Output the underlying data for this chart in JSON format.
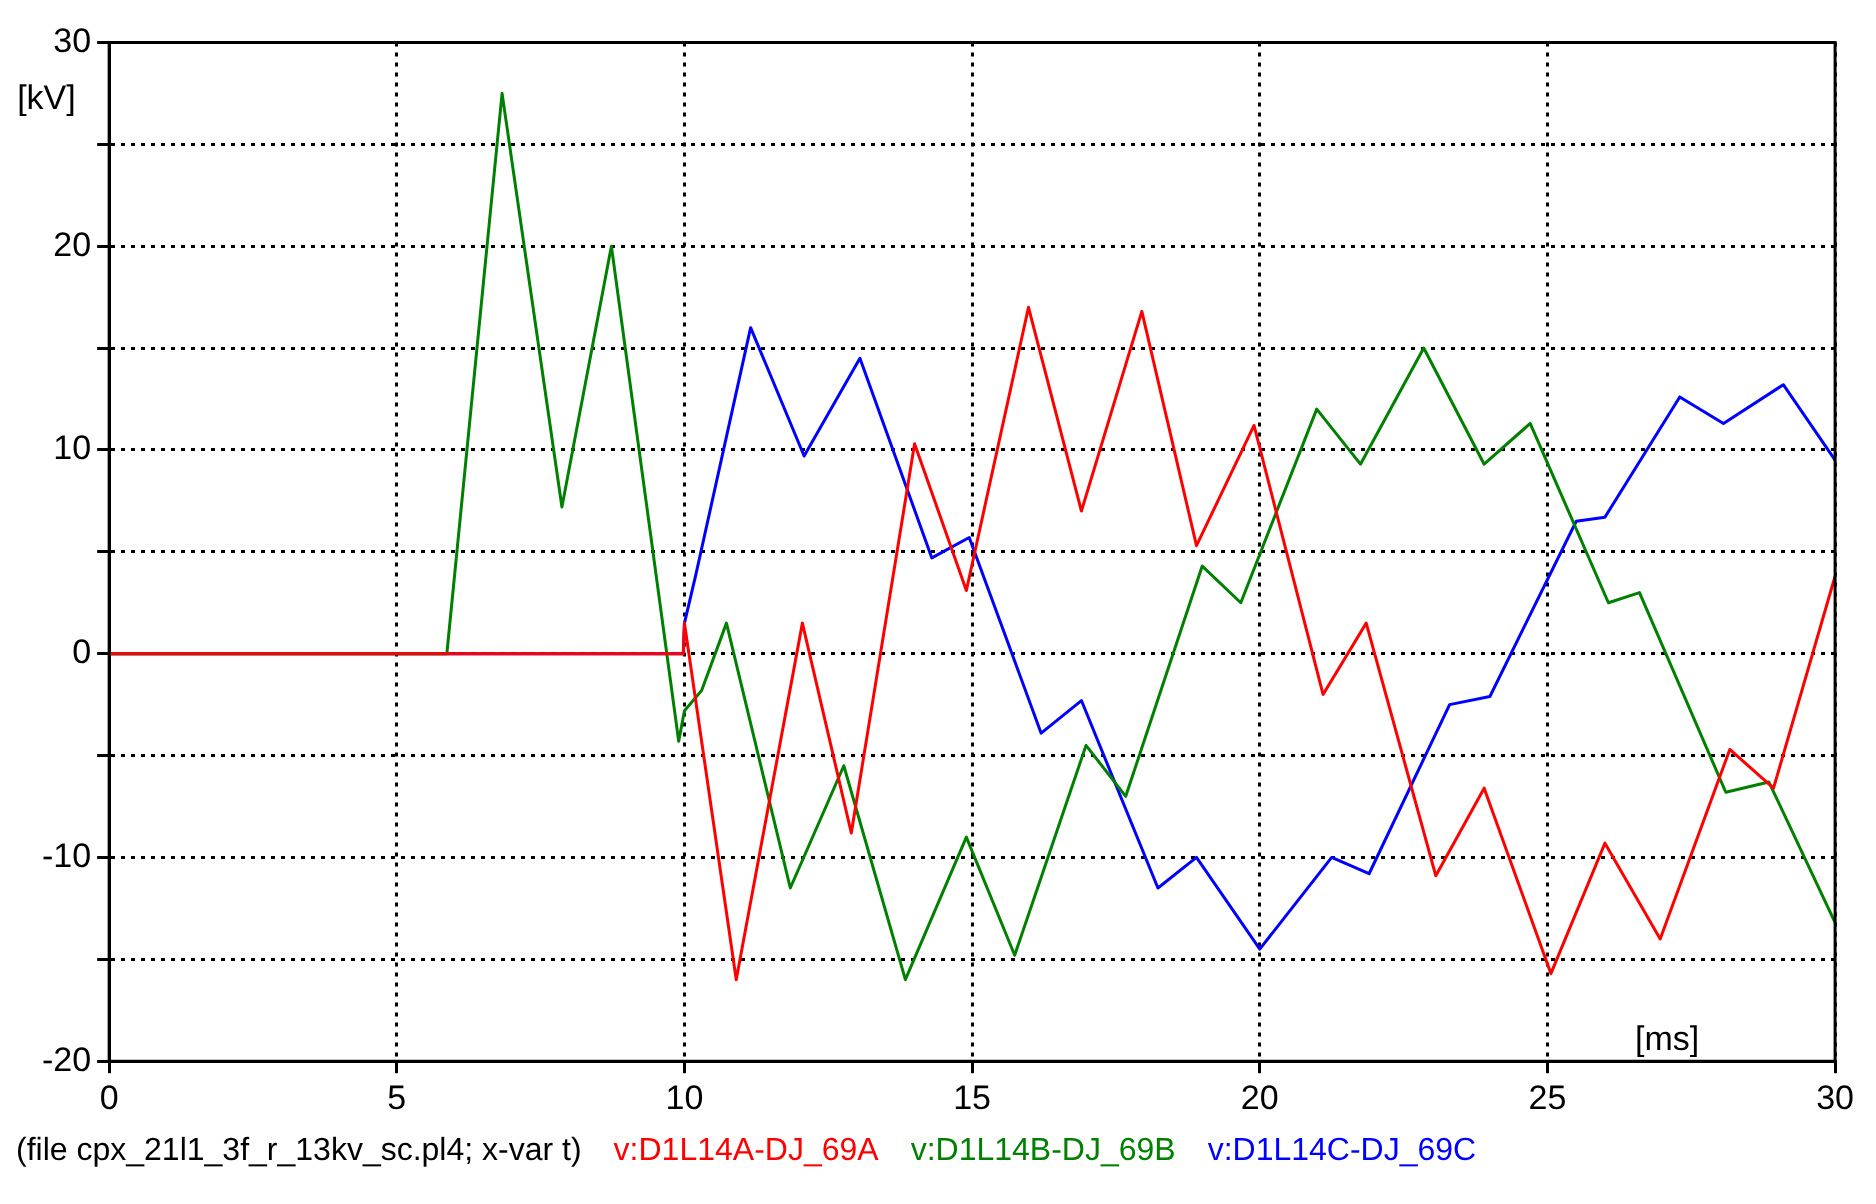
{
  "chart_data": {
    "type": "line",
    "xlabel": "[ms]",
    "ylabel": "[kV]",
    "annotations": [
      "(file cpx_21l1_3f_r_13kv_sc.pl4; x-var t)"
    ],
    "xlim": [
      0,
      30
    ],
    "xticks": [
      0,
      5,
      10,
      15,
      20,
      25,
      30
    ],
    "ylim": [
      -20,
      30
    ],
    "yticks": [
      -20,
      {
        "value": -15,
        "label": null
      },
      -10,
      {
        "value": -5,
        "label": null
      },
      0,
      {
        "value": 5,
        "label": null
      },
      10,
      {
        "value": 15,
        "label": null
      },
      20,
      {
        "value": 25,
        "label": null
      },
      30
    ],
    "grid": true,
    "legend": "bottom",
    "marker": "none",
    "line_style": "solid",
    "series": [
      {
        "name": "v:D1L14A-DJ_69A",
        "color": "#ff0000",
        "x": [
          0,
          9.98,
          10.0,
          10.9,
          12.05,
          12.9,
          14.0,
          14.9,
          15.98,
          16.9,
          17.95,
          18.9,
          19.9,
          21.1,
          21.85,
          23.06,
          23.9,
          25.06,
          26.0,
          26.96,
          28.17,
          28.93,
          30
        ],
        "values": [
          0,
          0,
          1.5,
          -16,
          1.5,
          -8.8,
          10.3,
          3.1,
          17,
          7,
          16.8,
          5.3,
          11.2,
          -2,
          1.5,
          -10.9,
          -6.6,
          -15.7,
          -9.3,
          -14,
          -4.7,
          -6.6,
          3.8
        ]
      },
      {
        "name": "v:D1L14B-DJ_69B",
        "color": "#008000",
        "x": [
          0,
          5.87,
          6.83,
          7.87,
          8.73,
          9.9,
          10.0,
          10.3,
          10.73,
          11.84,
          12.77,
          13.84,
          14.9,
          15.74,
          16.98,
          17.67,
          19.0,
          19.67,
          20.99,
          21.75,
          22.85,
          23.9,
          24.7,
          26.06,
          26.6,
          28.1,
          28.85,
          30
        ],
        "values": [
          0,
          0,
          27.5,
          7.2,
          20,
          -4.3,
          -2.8,
          -1.8,
          1.5,
          -11.5,
          -5.5,
          -16,
          -9,
          -14.8,
          -4.5,
          -7,
          4.3,
          2.5,
          12,
          9.3,
          15,
          9.3,
          11.3,
          2.5,
          3,
          -6.8,
          -6.3,
          -13.2
        ]
      },
      {
        "name": "v:D1L14C-DJ_69C",
        "color": "#0000ff",
        "x": [
          0,
          9.98,
          10.0,
          10.2,
          11.15,
          12.08,
          13.05,
          14.3,
          14.95,
          16.2,
          16.9,
          18.23,
          18.9,
          20.0,
          21.25,
          21.9,
          23.3,
          24.0,
          25.5,
          26.0,
          27.3,
          28.06,
          29.1,
          30
        ],
        "values": [
          0,
          0,
          1.5,
          3.9,
          16,
          9.7,
          14.5,
          4.7,
          5.7,
          -3.9,
          -2.3,
          -11.5,
          -10,
          -14.5,
          -10,
          -10.8,
          -2.5,
          -2.1,
          6.5,
          6.7,
          12.6,
          11.3,
          13.2,
          9.5
        ]
      }
    ]
  }
}
